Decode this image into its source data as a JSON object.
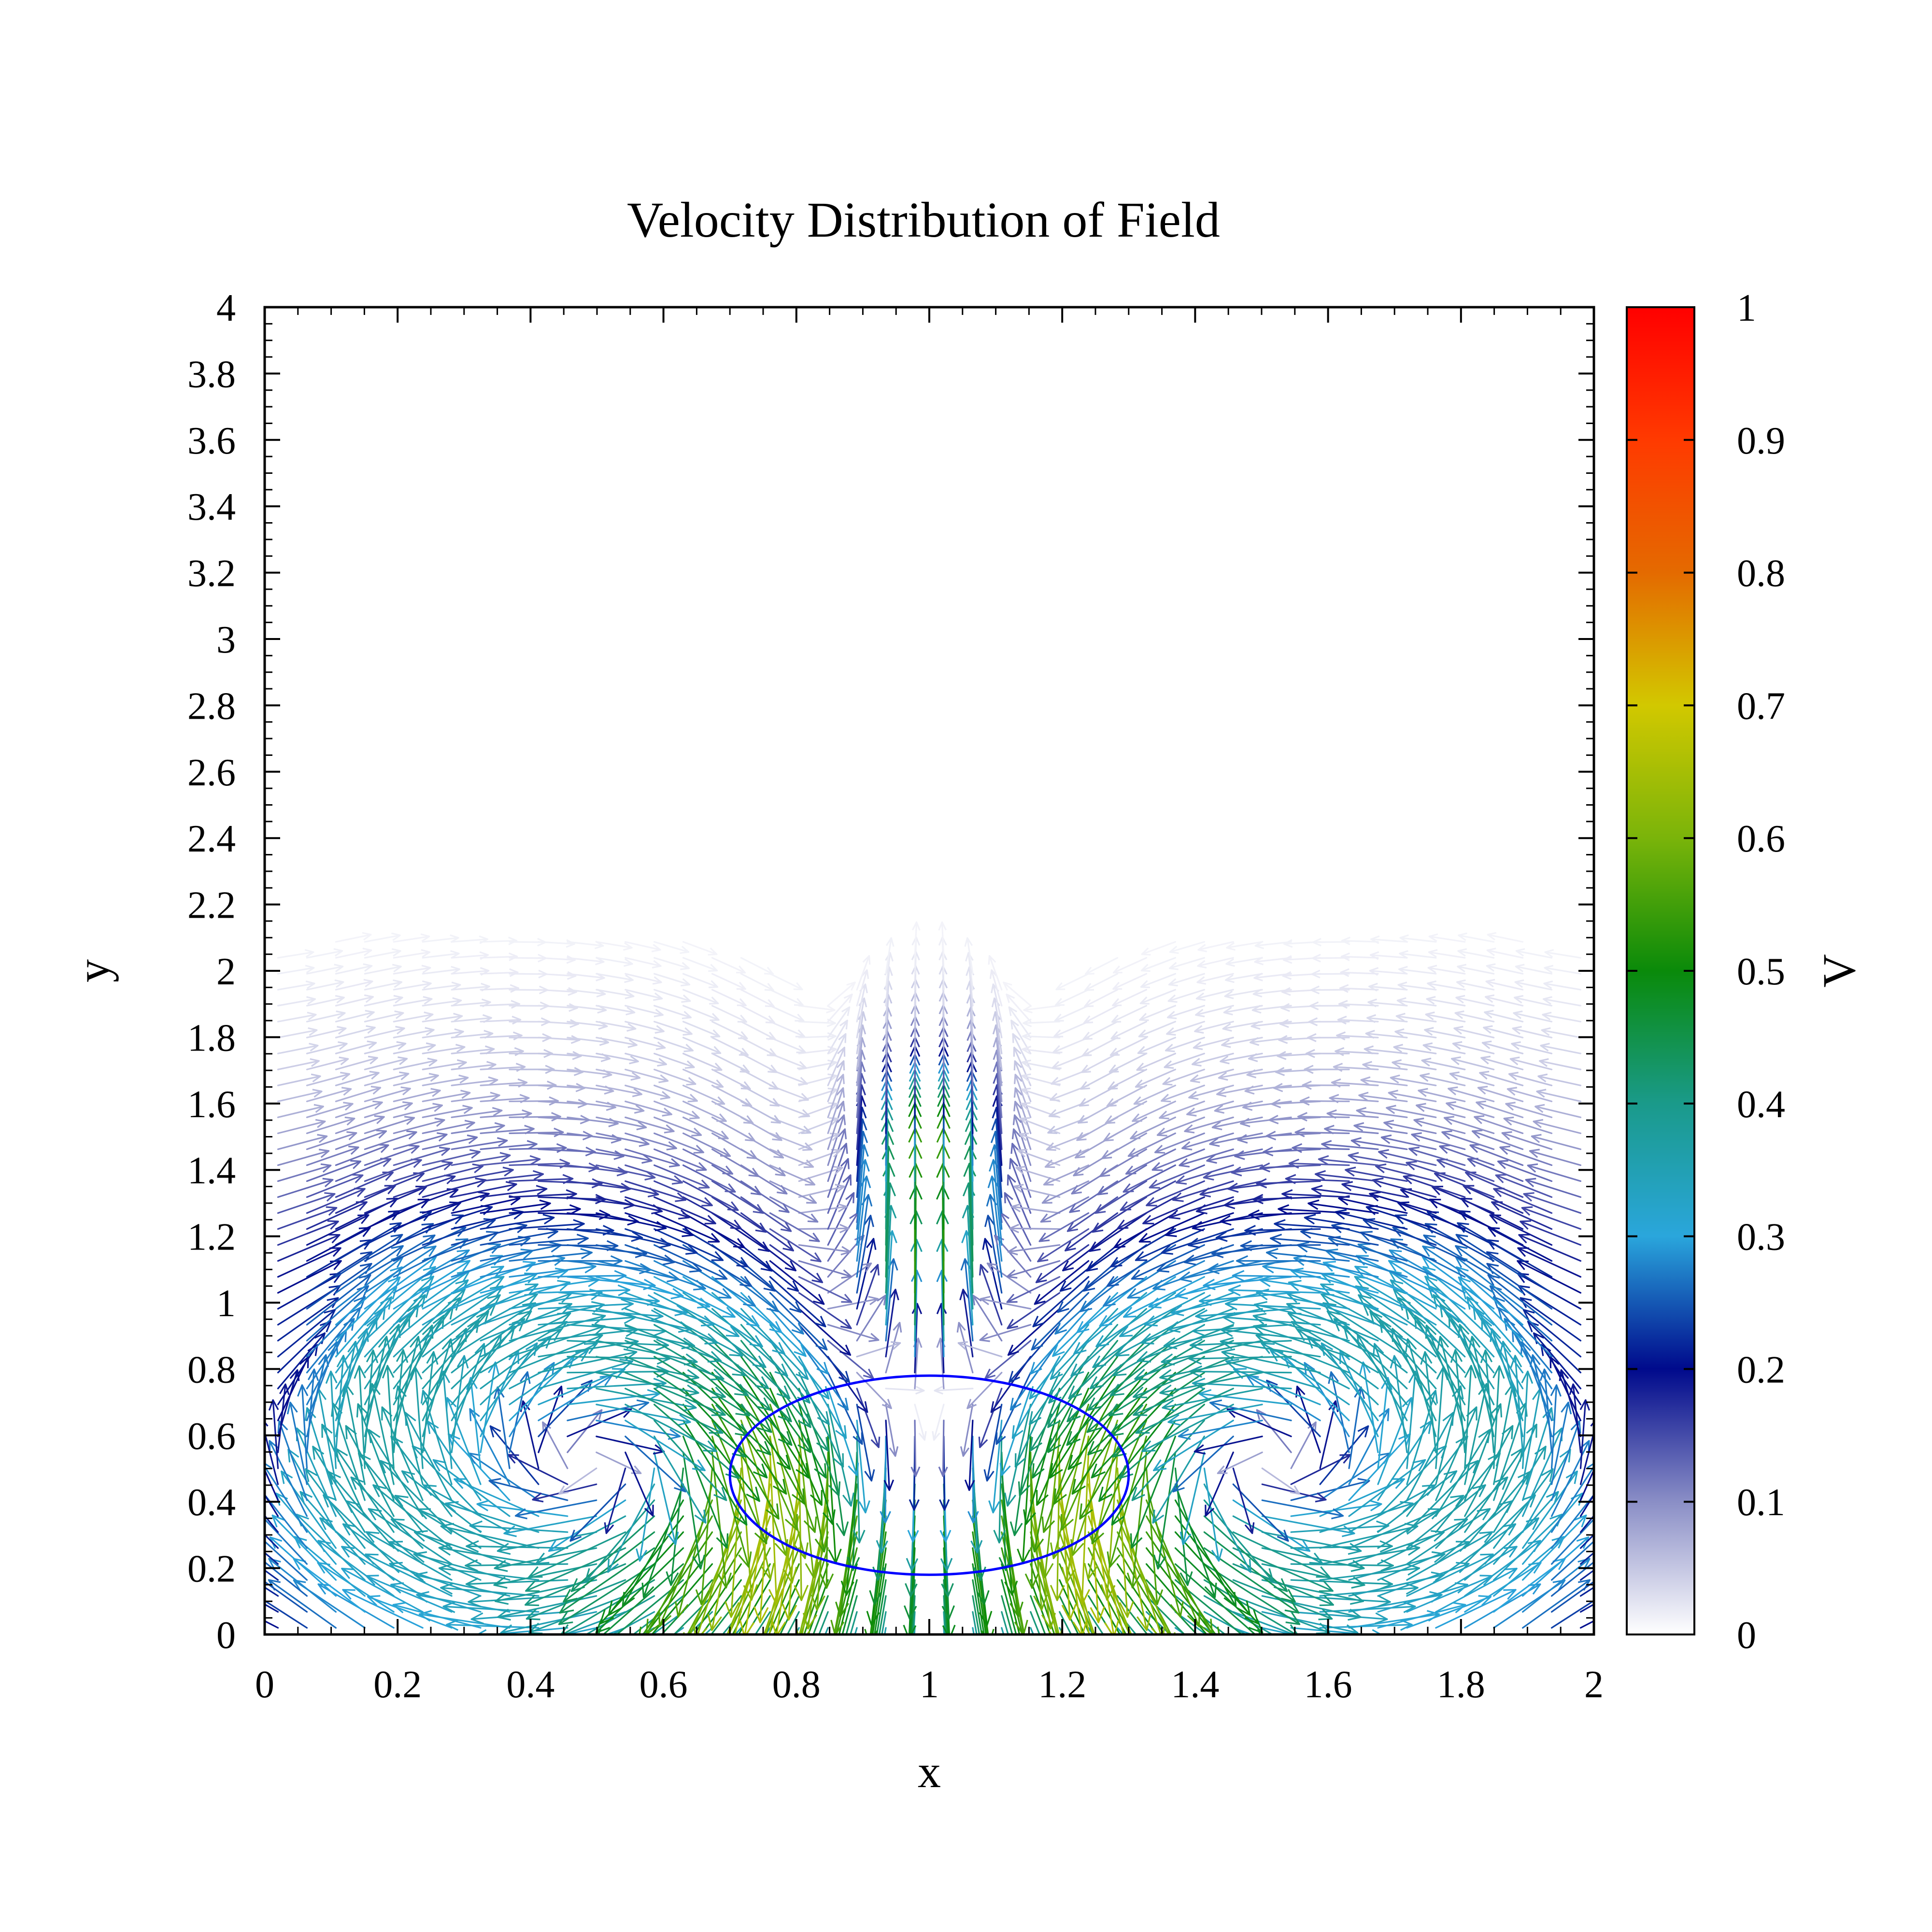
{
  "chart_data": {
    "type": "quiver",
    "title": "Velocity Distribution of Field",
    "xlabel": "x",
    "ylabel": "y",
    "colorbar_label": "V",
    "xlim": [
      0,
      2
    ],
    "ylim": [
      0,
      4
    ],
    "clim": [
      0,
      1
    ],
    "x_ticks": [
      "0",
      "0.2",
      "0.4",
      "0.6",
      "0.8",
      "1",
      "1.2",
      "1.4",
      "1.6",
      "1.8",
      "2"
    ],
    "y_ticks": [
      "0",
      "0.2",
      "0.4",
      "0.6",
      "0.8",
      "1",
      "1.2",
      "1.4",
      "1.6",
      "1.8",
      "2",
      "2.2",
      "2.4",
      "2.6",
      "2.8",
      "3",
      "3.2",
      "3.4",
      "3.6",
      "3.8",
      "4"
    ],
    "colorbar_ticks": [
      "0",
      "0.1",
      "0.2",
      "0.3",
      "0.4",
      "0.5",
      "0.6",
      "0.7",
      "0.8",
      "0.9",
      "1"
    ],
    "colormap": [
      {
        "v": 0.0,
        "color": "#ffffff"
      },
      {
        "v": 0.1,
        "color": "#8a8ec6"
      },
      {
        "v": 0.2,
        "color": "#000a8c"
      },
      {
        "v": 0.3,
        "color": "#2aa6dc"
      },
      {
        "v": 0.4,
        "color": "#1a9a8a"
      },
      {
        "v": 0.5,
        "color": "#0a8a0a"
      },
      {
        "v": 0.6,
        "color": "#7ab40a"
      },
      {
        "v": 0.7,
        "color": "#d2c800"
      },
      {
        "v": 0.8,
        "color": "#e46a00"
      },
      {
        "v": 0.9,
        "color": "#ff3a00"
      },
      {
        "v": 1.0,
        "color": "#ff0000"
      }
    ],
    "body_outline": {
      "cx": 1.0,
      "cy": 0.48,
      "rx": 0.3,
      "ry": 0.3,
      "color": "#0000ff"
    }
  }
}
